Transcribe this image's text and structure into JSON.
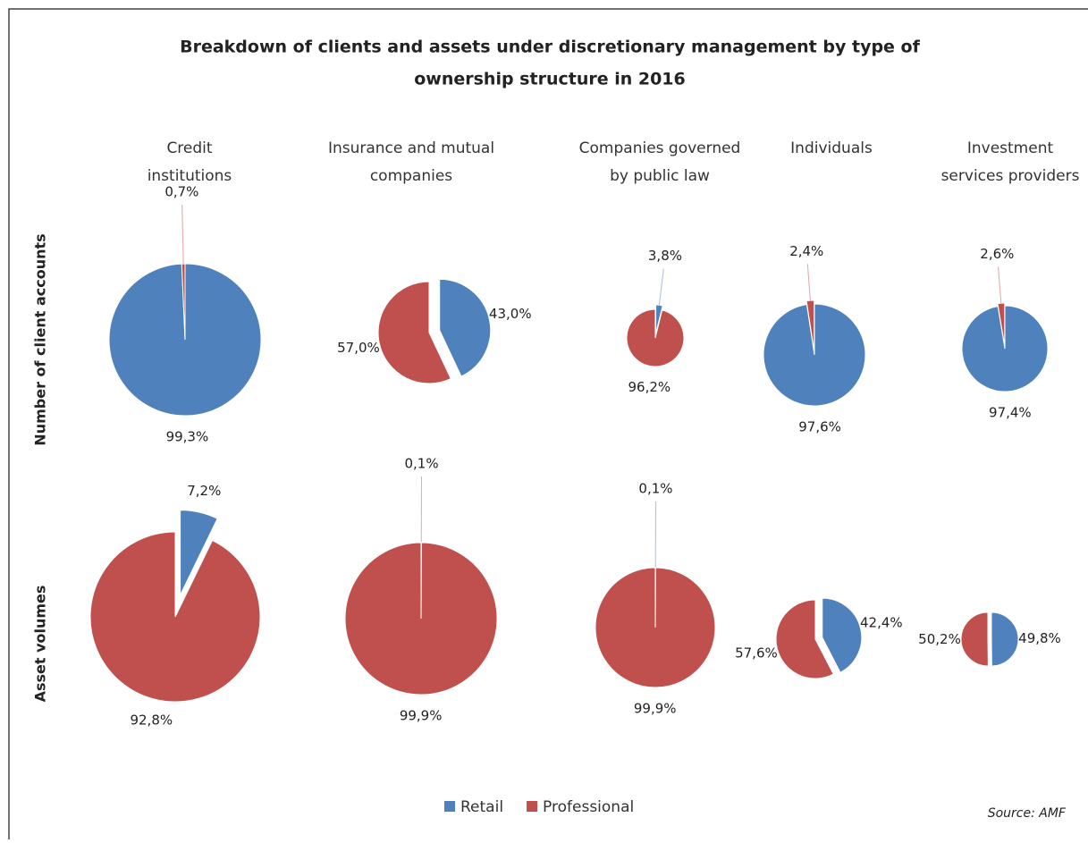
{
  "title": [
    "Breakdown of clients and assets under discretionary management by type of",
    "ownership structure in 2016"
  ],
  "columns": [
    [
      "Credit",
      "institutions"
    ],
    [
      "Insurance and mutual",
      "companies"
    ],
    [
      "Companies governed",
      "by public law"
    ],
    [
      "Individuals"
    ],
    [
      "Investment",
      "services providers"
    ]
  ],
  "rows": [
    "Number of client accounts",
    "Asset volumes"
  ],
  "source": "Source: AMF",
  "chart_data": [
    {
      "type": "pie",
      "categories": [
        "Retail",
        "Professional"
      ],
      "colors": [
        "#4f81bd",
        "#c0504d"
      ],
      "values": [
        99.3,
        0.7
      ],
      "value_labels": [
        "99,3%",
        "0,7%"
      ]
    },
    {
      "type": "pie",
      "categories": [
        "Retail",
        "Professional"
      ],
      "colors": [
        "#4f81bd",
        "#c0504d"
      ],
      "values": [
        43.0,
        57.0
      ],
      "value_labels": [
        "43,0%",
        "57,0%"
      ]
    },
    {
      "type": "pie",
      "categories": [
        "Retail",
        "Professional"
      ],
      "colors": [
        "#4f81bd",
        "#c0504d"
      ],
      "values": [
        3.8,
        96.2
      ],
      "value_labels": [
        "3,8%",
        "96,2%"
      ]
    },
    {
      "type": "pie",
      "categories": [
        "Retail",
        "Professional"
      ],
      "colors": [
        "#4f81bd",
        "#c0504d"
      ],
      "values": [
        97.6,
        2.4
      ],
      "value_labels": [
        "97,6%",
        "2,4%"
      ]
    },
    {
      "type": "pie",
      "categories": [
        "Retail",
        "Professional"
      ],
      "colors": [
        "#4f81bd",
        "#c0504d"
      ],
      "values": [
        97.4,
        2.6
      ],
      "value_labels": [
        "97,4%",
        "2,6%"
      ]
    },
    {
      "type": "pie",
      "categories": [
        "Retail",
        "Professional"
      ],
      "colors": [
        "#4f81bd",
        "#c0504d"
      ],
      "values": [
        7.2,
        92.8
      ],
      "value_labels": [
        "7,2%",
        "92,8%"
      ]
    },
    {
      "type": "pie",
      "categories": [
        "Retail",
        "Professional"
      ],
      "colors": [
        "#4f81bd",
        "#c0504d"
      ],
      "values": [
        0.1,
        99.9
      ],
      "value_labels": [
        "0,1%",
        "99,9%"
      ]
    },
    {
      "type": "pie",
      "categories": [
        "Retail",
        "Professional"
      ],
      "colors": [
        "#4f81bd",
        "#c0504d"
      ],
      "values": [
        0.1,
        99.9
      ],
      "value_labels": [
        "0,1%",
        "99,9%"
      ]
    },
    {
      "type": "pie",
      "categories": [
        "Retail",
        "Professional"
      ],
      "colors": [
        "#4f81bd",
        "#c0504d"
      ],
      "values": [
        42.4,
        57.6
      ],
      "value_labels": [
        "42,4%",
        "57,6%"
      ]
    },
    {
      "type": "pie",
      "categories": [
        "Retail",
        "Professional"
      ],
      "colors": [
        "#4f81bd",
        "#c0504d"
      ],
      "values": [
        49.8,
        50.2
      ],
      "value_labels": [
        "49,8%",
        "50,2%"
      ]
    }
  ]
}
